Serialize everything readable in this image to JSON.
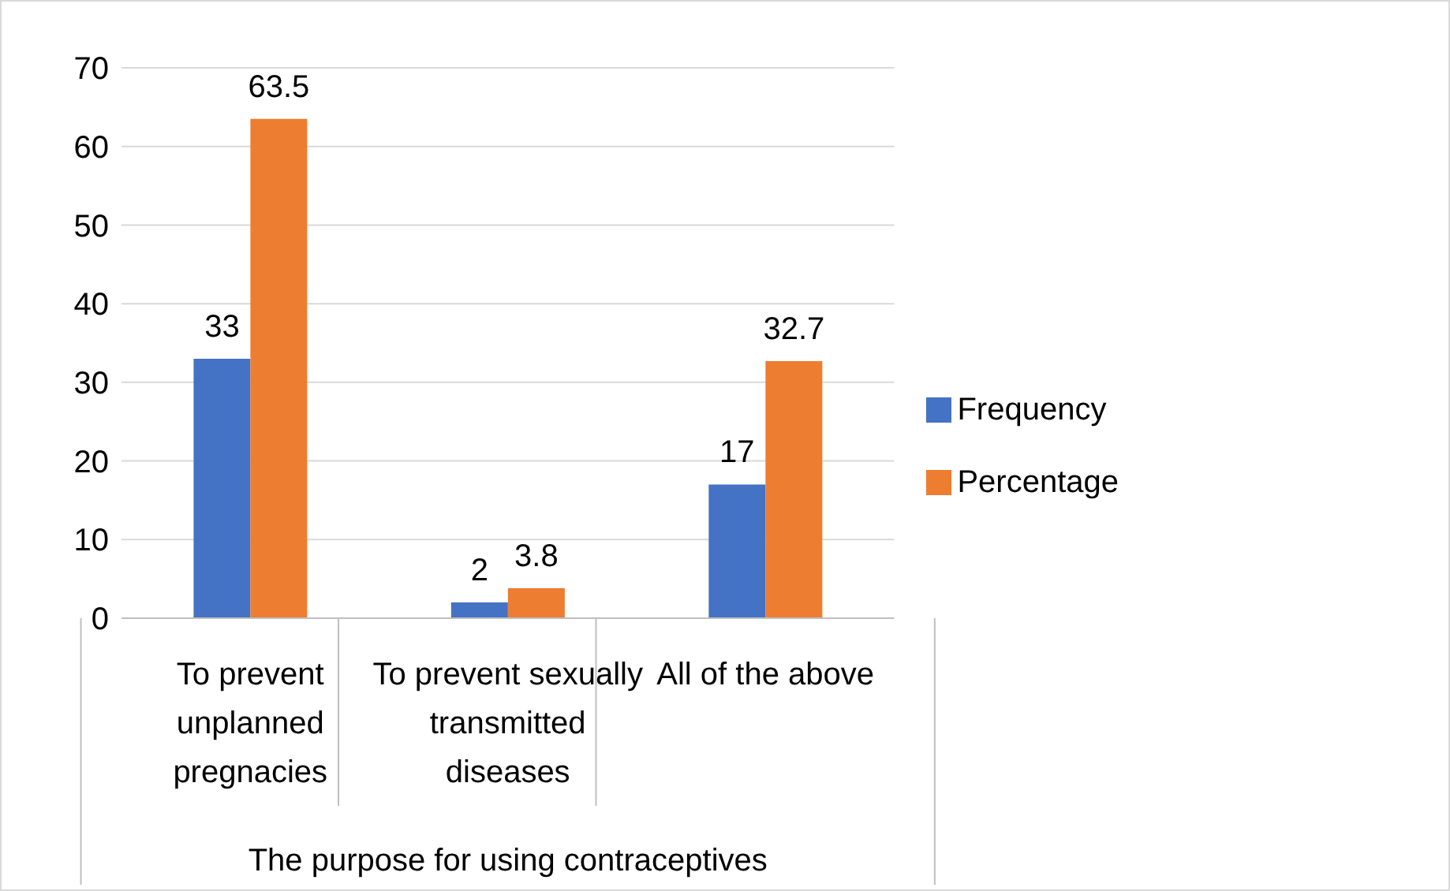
{
  "chart_data": {
    "type": "bar",
    "xlabel": "The purpose for using contraceptives",
    "categories": [
      "To prevent unplanned pregnacies",
      "To prevent sexually transmitted diseases",
      "All of the above"
    ],
    "series": [
      {
        "name": "Frequency",
        "color": "#4472c4",
        "values": [
          33,
          2,
          17
        ]
      },
      {
        "name": "Percentage",
        "color": "#ed7d31",
        "values": [
          63.5,
          3.8,
          32.7
        ]
      }
    ],
    "ylim": [
      0,
      70
    ],
    "yticks": [
      0,
      10,
      20,
      30,
      40,
      50,
      60,
      70
    ],
    "grid": "y",
    "legend": "right",
    "data_labels": true
  }
}
